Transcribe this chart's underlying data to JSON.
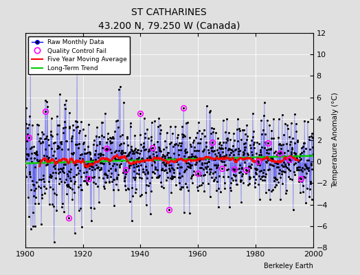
{
  "title": "ST CATHARINES",
  "subtitle": "43.200 N, 79.250 W (Canada)",
  "ylabel": "Temperature Anomaly (°C)",
  "xlabel_credit": "Berkeley Earth",
  "xlim": [
    1900,
    2000
  ],
  "ylim": [
    -8,
    12
  ],
  "yticks": [
    -8,
    -6,
    -4,
    -2,
    0,
    2,
    4,
    6,
    8,
    10,
    12
  ],
  "xticks": [
    1900,
    1920,
    1940,
    1960,
    1980,
    2000
  ],
  "bg_color": "#e0e0e0",
  "plot_bg_color": "#e0e0e0",
  "raw_line_color": "#0000ff",
  "raw_marker_color": "#000000",
  "qc_fail_color": "#ff00ff",
  "moving_avg_color": "#ff0000",
  "trend_color": "#00cc00",
  "seed": 12345,
  "n_months": 1200,
  "start_year": 1900,
  "end_year": 2000,
  "moving_avg_window": 60,
  "trend_slope": 0.003
}
